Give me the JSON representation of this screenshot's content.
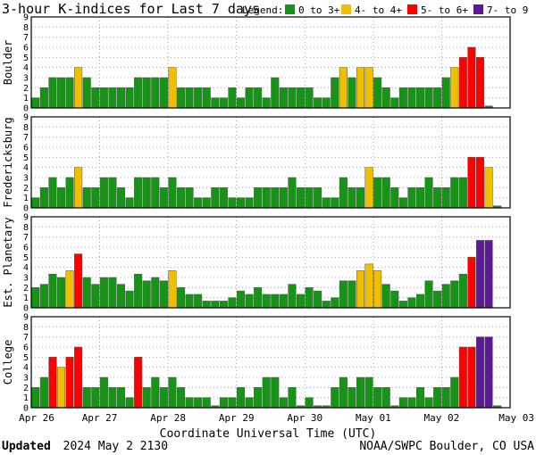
{
  "chart_data": {
    "type": "bar",
    "title": "3-hour K-indices for Last 7 days",
    "legend": {
      "label": "Legend:",
      "placement": "top-right",
      "entries": [
        {
          "label": "0 to 3+",
          "color": "#149614"
        },
        {
          "label": "4- to 4+",
          "color": "#f0c000"
        },
        {
          "label": "5- to 6+",
          "color": "#ff0000"
        },
        {
          "label": "7- to 9",
          "color": "#5a1a96"
        }
      ]
    },
    "xlabel": "Coordinate Universal Time (UTC)",
    "x_ticks": [
      "Apr 26",
      "Apr 27",
      "Apr 28",
      "Apr 29",
      "Apr 30",
      "May 01",
      "May 02",
      "May 03"
    ],
    "ylim": [
      0,
      9
    ],
    "y_ticks": [
      "0",
      "1",
      "2",
      "3",
      "4",
      "5",
      "6",
      "7",
      "8",
      "9"
    ],
    "grid": true,
    "panels": [
      {
        "name": "Boulder",
        "values": [
          1,
          2,
          3,
          3,
          3,
          4,
          3,
          2,
          2,
          2,
          2,
          2,
          3,
          3,
          3,
          3,
          4,
          2,
          2,
          2,
          2,
          1,
          1,
          2,
          1,
          2,
          2,
          1,
          3,
          2,
          2,
          2,
          2,
          1,
          1,
          3,
          4,
          3,
          4,
          4,
          3,
          2,
          1,
          2,
          2,
          2,
          2,
          2,
          3,
          4,
          5,
          6,
          5,
          0.2
        ]
      },
      {
        "name": "Fredericksburg",
        "values": [
          1,
          2,
          3,
          2,
          3,
          4,
          2,
          2,
          3,
          3,
          2,
          1,
          3,
          3,
          3,
          2,
          3,
          2,
          2,
          1,
          1,
          2,
          2,
          1,
          1,
          1,
          2,
          2,
          2,
          2,
          3,
          2,
          2,
          2,
          1,
          1,
          3,
          2,
          2,
          4,
          3,
          3,
          2,
          1,
          2,
          2,
          3,
          2,
          2,
          3,
          3,
          5,
          5,
          4,
          0.2
        ]
      },
      {
        "name": "Est. Planetary",
        "values": [
          2,
          2.33,
          3.33,
          3,
          3.67,
          5.33,
          3,
          2.33,
          3,
          3,
          2.33,
          1.67,
          3.33,
          2.67,
          3,
          2.67,
          3.67,
          2,
          1.33,
          1.33,
          0.67,
          0.67,
          0.67,
          1,
          1.67,
          1.33,
          2,
          1.33,
          1.33,
          1.33,
          2.33,
          1.33,
          2,
          1.67,
          0.67,
          1,
          2.67,
          2.67,
          3.67,
          4.33,
          3.67,
          2.33,
          1.67,
          0.67,
          1,
          1.33,
          2.67,
          1.67,
          2.33,
          2.67,
          3.33,
          5,
          6.67,
          6.67
        ]
      },
      {
        "name": "College",
        "values": [
          2,
          3,
          5,
          4,
          5,
          6,
          2,
          2,
          3,
          2,
          2,
          1,
          5,
          2,
          3,
          2,
          3,
          2,
          1,
          1,
          1,
          0.2,
          1,
          1,
          2,
          1,
          2,
          3,
          3,
          1,
          2,
          0.2,
          1,
          0.2,
          0.2,
          2,
          3,
          2,
          3,
          3,
          2,
          2,
          0.2,
          1,
          1,
          2,
          1,
          2,
          2,
          3,
          6,
          6,
          7,
          7,
          0.2
        ]
      }
    ]
  },
  "footer": {
    "updated_label": "Updated",
    "updated_time": "2024 May  2 2130",
    "source": "NOAA/SWPC Boulder, CO USA"
  }
}
